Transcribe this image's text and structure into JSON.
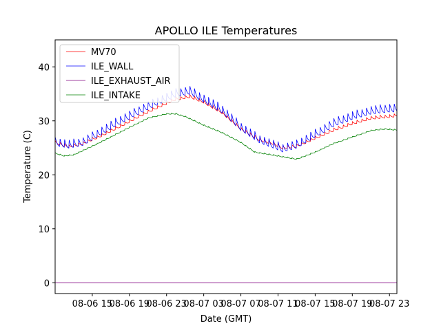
{
  "chart_data": {
    "type": "line",
    "title": "APOLLO ILE Temperatures",
    "xlabel": "Date (GMT)",
    "ylabel": "Temperature (C)",
    "xlim_hours": [
      11.0,
      47.8
    ],
    "ylim": [
      -2,
      45
    ],
    "grid": false,
    "legend_position": "top-left",
    "yticks": [
      0,
      10,
      20,
      30,
      40
    ],
    "xticks": [
      {
        "hour": 15,
        "label": "08-06 15"
      },
      {
        "hour": 19,
        "label": "08-06 19"
      },
      {
        "hour": 23,
        "label": "08-06 23"
      },
      {
        "hour": 27,
        "label": "08-07 03"
      },
      {
        "hour": 31,
        "label": "08-07 07"
      },
      {
        "hour": 35,
        "label": "08-07 11"
      },
      {
        "hour": 39,
        "label": "08-07 15"
      },
      {
        "hour": 43,
        "label": "08-07 19"
      },
      {
        "hour": 47,
        "label": "08-07 23"
      }
    ],
    "series": [
      {
        "name": "MV70",
        "color": "#ff0000",
        "cycle_amplitude": 0.6,
        "hours": [
          11.0,
          12.5,
          14.0,
          16.0,
          18.0,
          20.0,
          22.0,
          24.0,
          25.5,
          27.0,
          29.0,
          31.0,
          33.0,
          34.5,
          35.5,
          37.0,
          39.0,
          41.0,
          43.0,
          45.0,
          47.0,
          47.8
        ],
        "values": [
          26.0,
          25.2,
          25.8,
          27.3,
          29.0,
          30.8,
          32.5,
          34.0,
          34.5,
          33.5,
          31.5,
          28.5,
          26.5,
          25.8,
          25.0,
          25.3,
          26.8,
          28.3,
          29.5,
          30.5,
          30.8,
          31.0
        ]
      },
      {
        "name": "ILE_WALL",
        "color": "#0000ff",
        "cycle_amplitude": 1.6,
        "hours": [
          11.0,
          12.5,
          14.0,
          16.0,
          18.0,
          20.0,
          22.0,
          24.0,
          25.5,
          27.0,
          29.0,
          31.0,
          33.0,
          34.5,
          35.5,
          37.0,
          39.0,
          41.0,
          43.0,
          45.0,
          47.0,
          47.8
        ],
        "values": [
          26.0,
          25.5,
          26.0,
          28.0,
          30.0,
          31.8,
          33.5,
          35.0,
          35.5,
          34.0,
          32.0,
          28.8,
          26.5,
          25.5,
          24.8,
          25.5,
          27.5,
          29.5,
          30.8,
          31.8,
          32.2,
          32.2
        ]
      },
      {
        "name": "ILE_EXHAUST_AIR",
        "color": "#800080",
        "cycle_amplitude": 0,
        "hours": [
          11.0,
          47.8
        ],
        "values": [
          0.0,
          0.0
        ]
      },
      {
        "name": "ILE_INTAKE",
        "color": "#008000",
        "cycle_amplitude": 0.2,
        "hours": [
          11.0,
          12.0,
          13.0,
          15.0,
          17.0,
          19.0,
          21.0,
          23.0,
          24.0,
          25.0,
          27.0,
          29.0,
          31.0,
          32.5,
          34.0,
          36.0,
          37.0,
          39.0,
          41.0,
          43.0,
          45.0,
          46.5,
          47.8
        ],
        "values": [
          24.0,
          23.5,
          23.7,
          25.3,
          27.0,
          28.8,
          30.5,
          31.3,
          31.3,
          30.8,
          29.2,
          27.8,
          26.0,
          24.2,
          23.8,
          23.2,
          22.9,
          24.2,
          25.8,
          27.0,
          28.2,
          28.5,
          28.3
        ]
      }
    ]
  }
}
